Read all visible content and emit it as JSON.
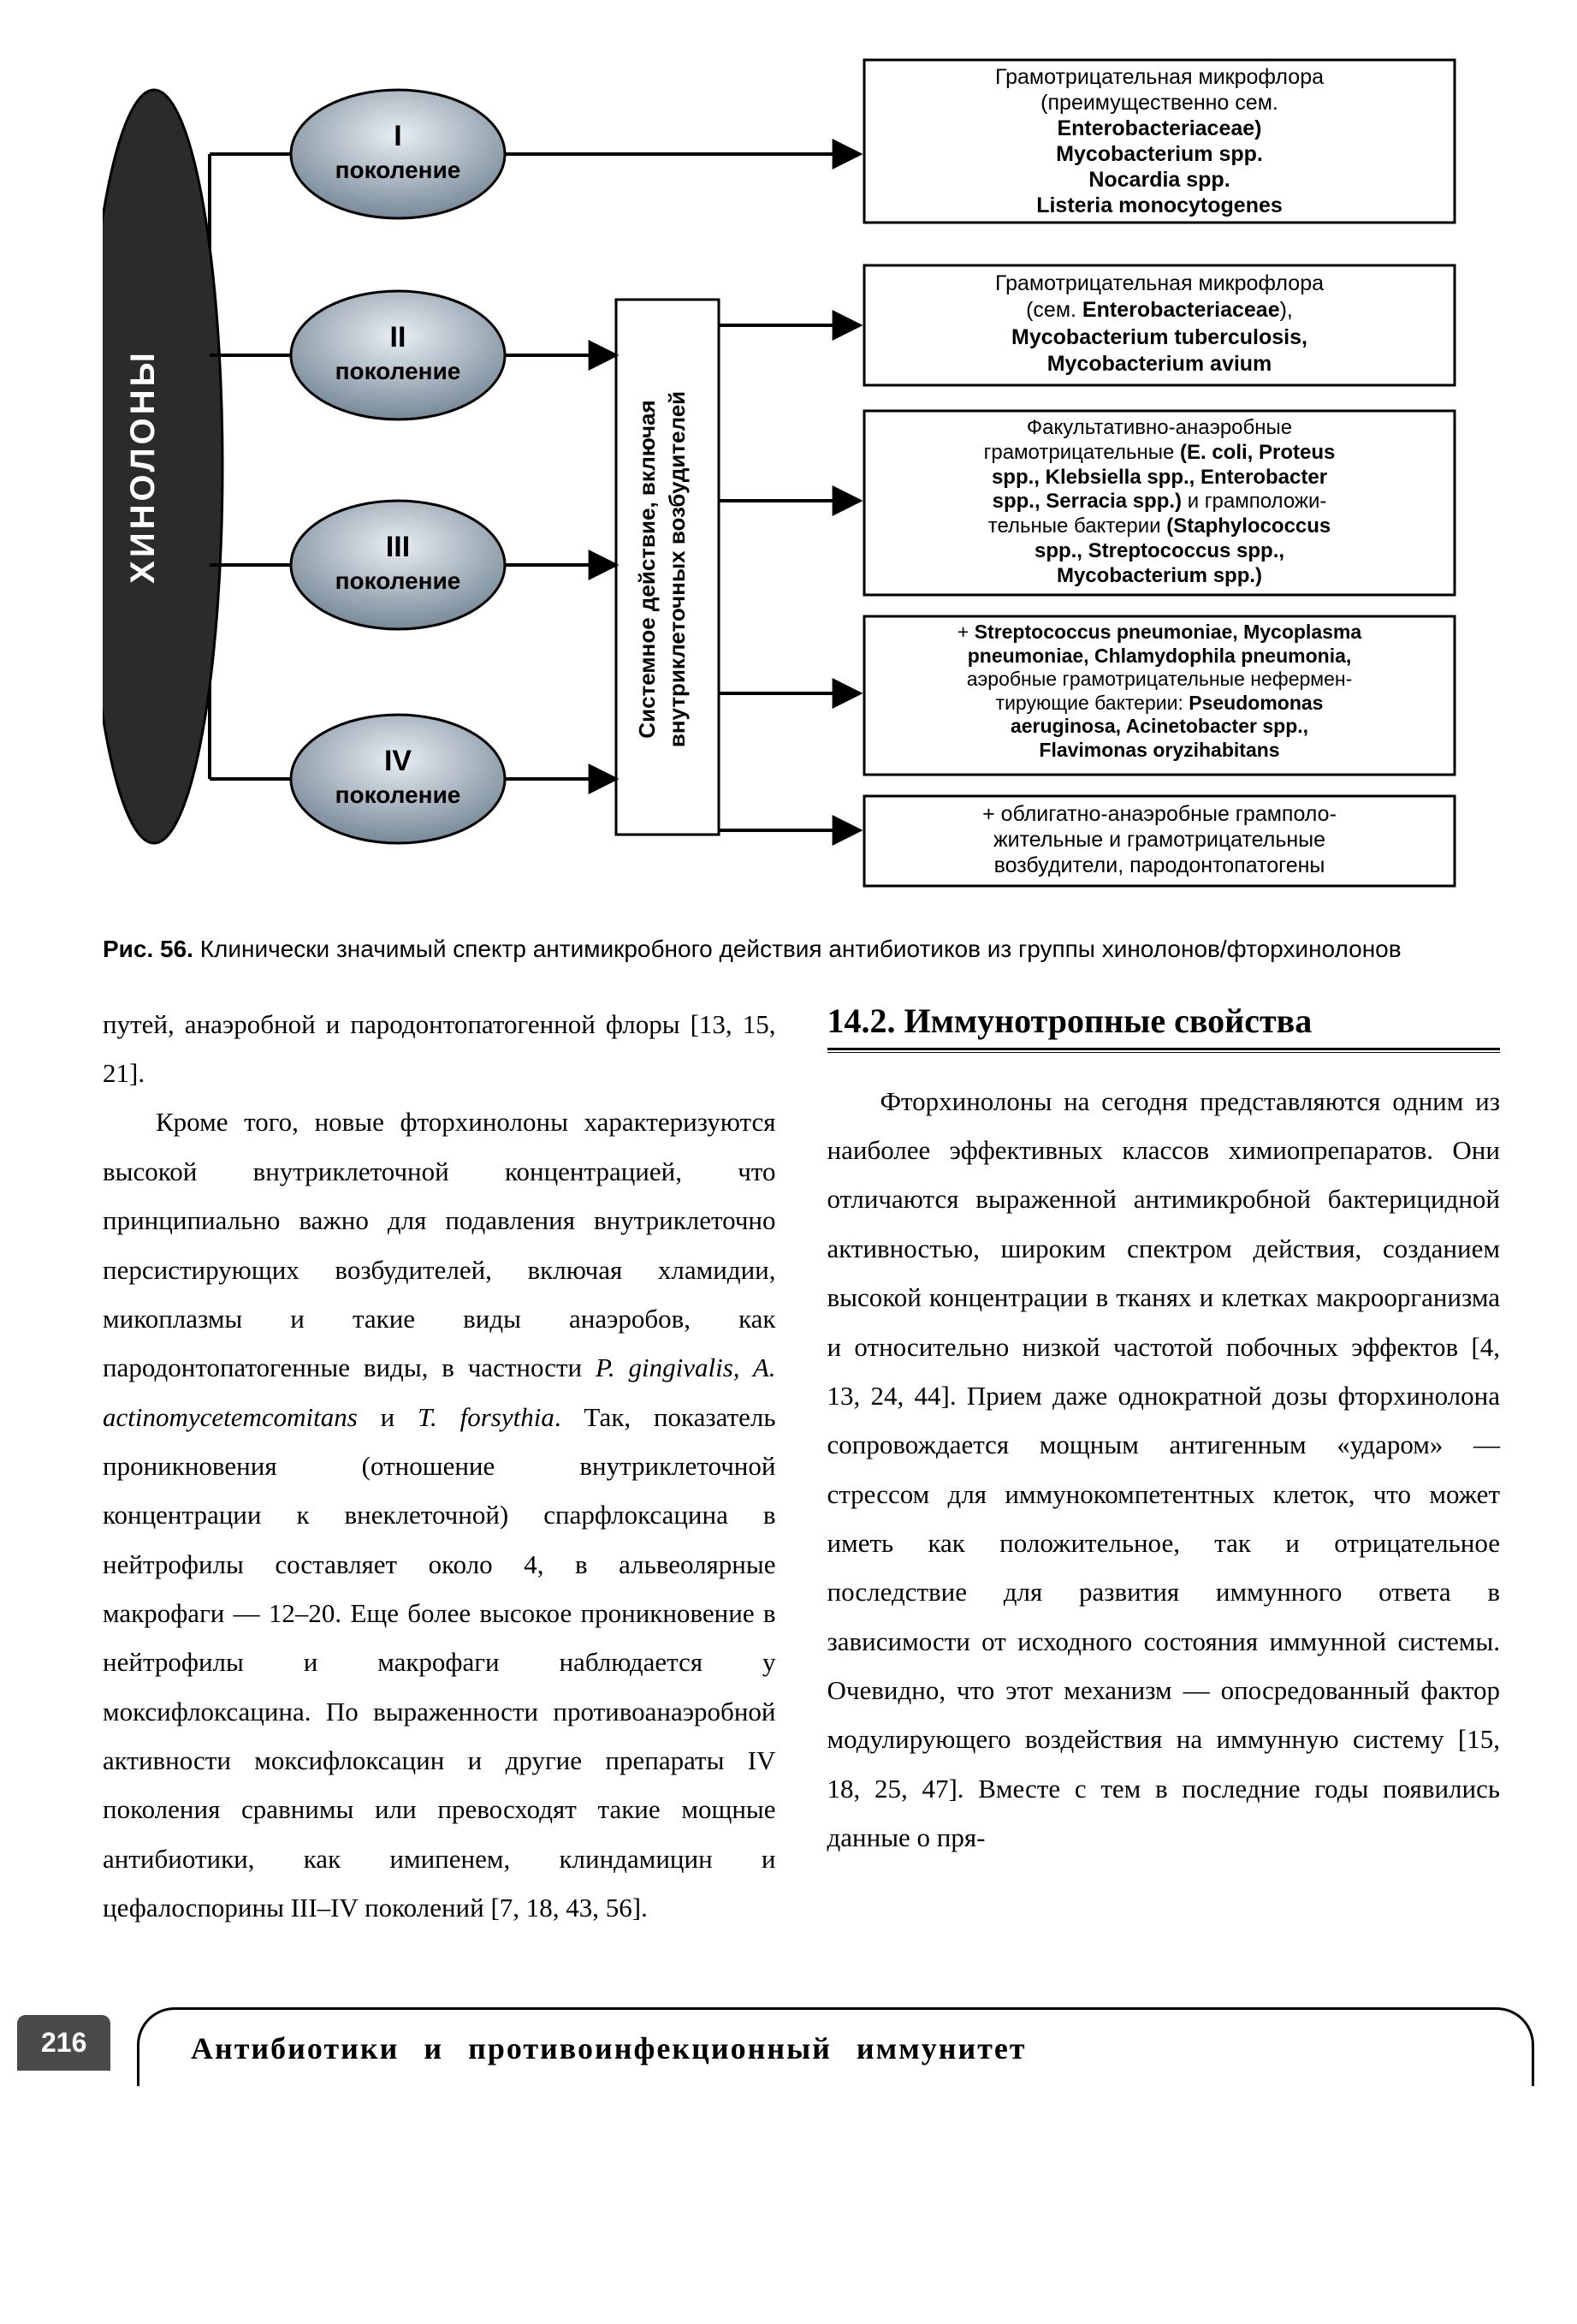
{
  "diagram": {
    "hub_label": "ХИНОЛОНЫ",
    "generations": [
      "I",
      "II",
      "III",
      "IV"
    ],
    "gen_sub": "поколение",
    "center_box_lines": [
      "Системное действие, включая",
      "внутриклеточных возбудителей"
    ],
    "boxes": [
      {
        "lines": [
          "Грамотрицательная микрофлора",
          "(преимущественно сем.",
          "<b>Enterobacteriaceae)</b>",
          "<b>Mycobacterium spp.</b>",
          "<b>Nocardia spp.</b>",
          "<b>Listeria monocytogenes</b>"
        ]
      },
      {
        "lines": [
          "Грамотрицательная микрофлора",
          "(сем. <b>Enterobacteriaceae</b>),",
          "<b>Mycobacterium tuberculosis,</b>",
          "<b>Mycobacterium avium</b>"
        ]
      },
      {
        "lines": [
          "Факультативно-анаэробные",
          "грамотрицательные <b>(E. coli, Proteus</b>",
          "<b>spp., Klebsiella spp., Enterobacter</b>",
          "<b>spp., Serracia spp.)</b> и грамположи-",
          "тельные бактерии <b>(Staphylococcus</b>",
          "<b>spp., Streptococcus spp.,</b>",
          "<b>Mycobacterium spp.)</b>"
        ]
      },
      {
        "lines": [
          "+ <b>Streptococcus pneumoniae, Mycoplasma</b>",
          "<b>pneumoniae, Chlamydophila pneumonia,</b>",
          "аэробные грамотрицательные нефермен-",
          "тирующие бактерии: <b>Pseudomonas</b>",
          "<b>aeruginosa, Acinetobacter spp.,</b>",
          "<b>Flavimonas oryzihabitans</b>"
        ]
      },
      {
        "lines": [
          "+ облигатно-анаэробные грамполо-",
          "жительные и грамотрицательные",
          "возбудители, пародонтопатогены"
        ]
      }
    ],
    "colors": {
      "hub_fill": "#2b2b2b",
      "hub_text": "#ffffff",
      "ellipse_grad_top": "#e8eef3",
      "ellipse_grad_bot": "#6f8191",
      "ellipse_stroke": "#000000",
      "box_fill": "#ffffff",
      "box_stroke": "#000000",
      "center_box_fill": "#ffffff",
      "line_color": "#000000"
    }
  },
  "caption": {
    "label": "Рис. 56.",
    "text": "Клинически значимый спектр антимикробного действия антибиотиков из группы хинолонов/фторхинолонов"
  },
  "left_col": {
    "p1": "путей, анаэробной и пародонтопатогенной флоры [13, 15, 21].",
    "p2a": "Кроме того, новые фторхинолоны характеризуются высокой внутриклеточной концентрацией, что принципиально важно для подавления внутриклеточно персистирующих возбудителей, включая хламидии, микоплазмы и такие виды анаэробов, как пародонтопатогенные виды, в частности ",
    "p2_it": "P. gingivalis, A. actinomycetemcomitans",
    "p2_and": " и ",
    "p2_it2": "T. forsythia",
    "p2b": ". Так, показатель проникновения (отношение внутриклеточной концентрации к внеклеточной) спарфлоксацина в нейтрофилы составляет около 4, в альвеолярные макрофаги — 12–20. Еще более высокое проникновение в нейтрофилы и макрофаги наблюдается у моксифлоксацина. По выраженности противоанаэробной активности моксифлоксацин и другие препараты IV поколения сравнимы или превосходят такие мощные антибиотики, как имипенем, клиндамицин и цефалоспорины III–IV поколений [7, 18, 43, 56]."
  },
  "right_col": {
    "heading": "14.2. Иммунотропные свойства",
    "p1": "Фторхинолоны на сегодня представляются одним из наиболее эффективных классов химиопрепаратов. Они отличаются выраженной антимикробной бактерицидной активностью, широким спектром действия, созданием высокой концентрации в тканях и клетках макроорганизма и относительно низкой частотой побочных эффектов [4, 13, 24, 44]. Прием даже однократной дозы фторхинолона сопровождается мощным антигенным «ударом» — стрессом для иммунокомпетентных клеток, что может иметь как положительное, так и отрицательное последствие для развития иммунного ответа в зависимости от исходного состояния иммунной системы. Очевидно, что этот механизм — опосредованный фактор модулирующего воздействия на иммунную систему [15, 18, 25, 47]. Вместе с тем в последние годы появились данные о пря-"
  },
  "footer": {
    "page": "216",
    "title": "Антибиотики и противоинфекционный иммунитет"
  }
}
